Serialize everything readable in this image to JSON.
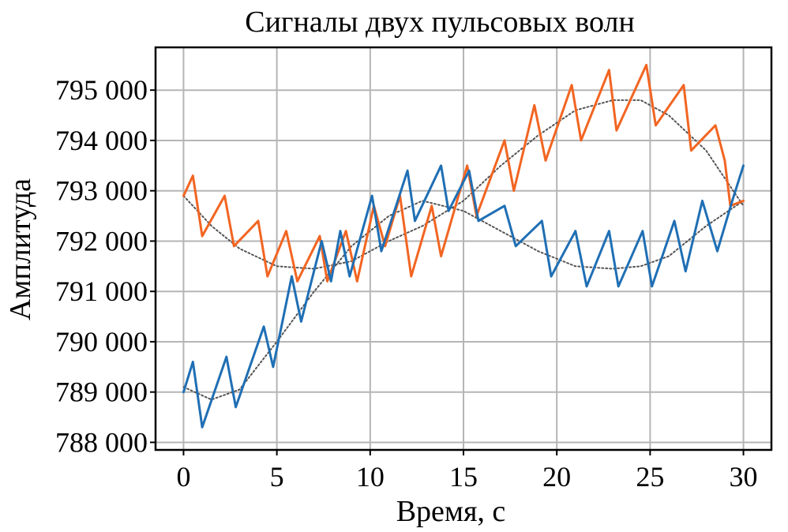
{
  "chart_data": {
    "type": "line",
    "title": "Сигналы двух пульсовых волн",
    "xlabel": "Время, с",
    "ylabel": "Амплитуда",
    "xlim": [
      -1.5,
      31.5
    ],
    "ylim": [
      787850,
      795850
    ],
    "x_ticks": [
      0,
      5,
      10,
      15,
      20,
      25,
      30
    ],
    "x_tick_labels": [
      "0",
      "5",
      "10",
      "15",
      "20",
      "25",
      "30"
    ],
    "y_ticks": [
      788000,
      789000,
      790000,
      791000,
      792000,
      793000,
      794000,
      795000
    ],
    "y_tick_labels": [
      "788 000",
      "789 000",
      "790 000",
      "791 000",
      "792 000",
      "793 000",
      "794 000",
      "795 000"
    ],
    "grid": true,
    "colors": {
      "orange": "#f26522",
      "blue": "#1f6fb4",
      "trend": "#555555"
    },
    "series": [
      {
        "color": "#f26522",
        "style": "solid",
        "x": [
          0,
          0.5,
          1.0,
          2.2,
          2.7,
          4.0,
          4.5,
          5.5,
          6.1,
          7.3,
          7.7,
          8.7,
          9.3,
          10.2,
          10.8,
          11.6,
          12.2,
          13.3,
          13.8,
          15.2,
          15.7,
          17.2,
          17.7,
          18.8,
          19.4,
          20.8,
          21.3,
          22.8,
          23.2,
          24.8,
          25.3,
          26.8,
          27.2,
          28.5,
          29.0,
          29.3,
          30.0
        ],
        "y": [
          792900,
          793300,
          792100,
          792900,
          791900,
          792400,
          791300,
          792200,
          791200,
          792100,
          791200,
          792200,
          791200,
          792700,
          791900,
          792900,
          791300,
          792700,
          791700,
          793500,
          792500,
          794000,
          793000,
          794700,
          793600,
          795100,
          794000,
          795400,
          794200,
          795500,
          794300,
          795100,
          793800,
          794300,
          793600,
          792700,
          792800
        ]
      },
      {
        "color": "#1f6fb4",
        "style": "solid",
        "x": [
          0,
          0.5,
          1.0,
          2.3,
          2.8,
          4.3,
          4.8,
          5.8,
          6.3,
          7.4,
          7.9,
          8.4,
          8.9,
          10.1,
          10.6,
          12.0,
          12.4,
          13.8,
          14.2,
          15.3,
          15.8,
          17.2,
          17.8,
          19.2,
          19.7,
          21.0,
          21.6,
          22.8,
          23.3,
          24.6,
          25.1,
          26.3,
          26.9,
          27.8,
          28.6,
          29.4,
          30.0
        ],
        "y": [
          789000,
          789600,
          788300,
          789700,
          788700,
          790300,
          789500,
          791300,
          790400,
          792000,
          791200,
          792200,
          791300,
          792900,
          791800,
          793400,
          792400,
          793500,
          792600,
          793400,
          792400,
          792700,
          791900,
          792400,
          791300,
          792200,
          791100,
          792200,
          791100,
          792200,
          791100,
          792400,
          791400,
          792800,
          791800,
          792800,
          793500
        ]
      },
      {
        "color": "#555555",
        "style": "dotted",
        "x": [
          0,
          1.5,
          3.0,
          5.0,
          7.0,
          9.0,
          11.0,
          12.8,
          15.0,
          17.0,
          19.0,
          21.0,
          23.0,
          24.5,
          26.0,
          28.0,
          30.0
        ],
        "y": [
          792900,
          792300,
          791850,
          791500,
          791450,
          791600,
          792000,
          792300,
          792800,
          793500,
          794100,
          794600,
          794800,
          794800,
          794500,
          793800,
          792700
        ]
      },
      {
        "color": "#555555",
        "style": "dotted",
        "x": [
          0,
          1.5,
          3.0,
          5.0,
          7.0,
          9.0,
          11.0,
          12.8,
          15.0,
          17.0,
          19.0,
          21.0,
          23.0,
          24.5,
          26.0,
          28.0,
          30.0
        ],
        "y": [
          789100,
          788850,
          789050,
          790000,
          791000,
          791900,
          792500,
          792800,
          792600,
          792200,
          791800,
          791500,
          791450,
          791500,
          791700,
          792300,
          792800
        ]
      }
    ]
  }
}
